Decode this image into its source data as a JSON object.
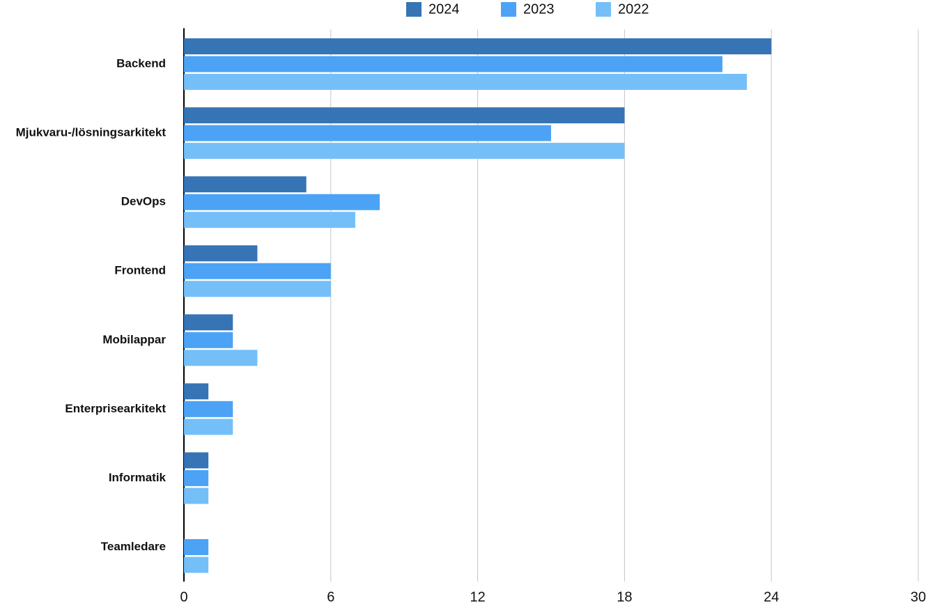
{
  "chart_data": {
    "type": "hbar",
    "categories": [
      "Backend",
      "Mjukvaru-/lösningsarkitekt",
      "DevOps",
      "Frontend",
      "Mobilappar",
      "Enterprisearkitekt",
      "Informatik",
      "Teamledare"
    ],
    "series": [
      {
        "name": "2024",
        "color": "#3674b5",
        "values": [
          24,
          18,
          5,
          3,
          2,
          1,
          1,
          null
        ]
      },
      {
        "name": "2023",
        "color": "#4ca3f5",
        "values": [
          22,
          15,
          8,
          6,
          2,
          2,
          1,
          1
        ]
      },
      {
        "name": "2022",
        "color": "#74bff8",
        "values": [
          23,
          18,
          7,
          6,
          3,
          2,
          1,
          1
        ]
      }
    ],
    "xlim": [
      0,
      30
    ],
    "xticks": [
      0,
      6,
      12,
      18,
      24,
      30
    ],
    "grid": true,
    "legend": "top"
  }
}
